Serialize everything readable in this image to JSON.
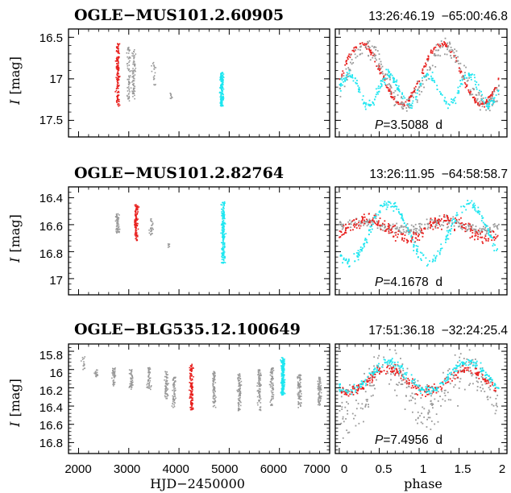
{
  "colors": {
    "red": "#e8201e",
    "gray": "#999999",
    "cyan": "#1ee6f0",
    "frame": "#000000"
  },
  "x_axis": {
    "hjd_label": "HJD−2450000",
    "phase_label": "phase",
    "hjd_ticks": [
      "2000",
      "3000",
      "4000",
      "5000",
      "6000",
      "7000"
    ],
    "phase_ticks": [
      "0",
      "0.5",
      "1",
      "1.5",
      "2"
    ]
  },
  "chart_data": [
    {
      "type": "scatter",
      "name": "OGLE−MUS101.2.60905",
      "coords": "13:26:46.19  −65:00:46.8",
      "ylabel_italic": "I",
      "ylabel_unit": "[mag]",
      "ylim": [
        17.7,
        16.4
      ],
      "yticks": [
        "16.5",
        "17",
        "17.5"
      ],
      "ytick_values": [
        16.5,
        17.0,
        17.5
      ],
      "period_label": "P",
      "period_value": "=3.5088  d",
      "lc_clusters": [
        {
          "x": 2780,
          "ylo": 16.57,
          "yhi": 17.33,
          "color": "red",
          "n": 150
        },
        {
          "x": 3000,
          "ylo": 16.62,
          "yhi": 17.28,
          "color": "gray",
          "n": 60
        },
        {
          "x": 3100,
          "ylo": 16.65,
          "yhi": 17.25,
          "color": "gray",
          "n": 70
        },
        {
          "x": 3500,
          "ylo": 16.72,
          "yhi": 17.15,
          "color": "gray",
          "n": 20
        },
        {
          "x": 3850,
          "ylo": 17.17,
          "yhi": 17.24,
          "color": "gray",
          "n": 8
        },
        {
          "x": 4850,
          "ylo": 16.92,
          "yhi": 17.33,
          "color": "cyan",
          "n": 180
        }
      ],
      "phase_series": [
        {
          "color": "red",
          "mean": 16.94,
          "amp": 0.37,
          "peak": 0.28,
          "shape": 1,
          "scatter": 0.02
        },
        {
          "color": "gray",
          "mean": 16.97,
          "amp": 0.34,
          "peak": 0.33,
          "shape": 1,
          "scatter": 0.06
        },
        {
          "color": "cyan",
          "mean": 17.13,
          "amp": 0.18,
          "peak": 0.62,
          "shape": 2,
          "scatter": 0.03
        }
      ]
    },
    {
      "type": "scatter",
      "name": "OGLE−MUS101.2.82764",
      "coords": "13:26:11.95  −64:58:58.7",
      "ylabel_italic": "I",
      "ylabel_unit": "[mag]",
      "ylim": [
        17.12,
        16.32
      ],
      "yticks": [
        "16.4",
        "16.6",
        "16.8",
        "17"
      ],
      "ytick_values": [
        16.4,
        16.6,
        16.8,
        17.0
      ],
      "period_label": "P",
      "period_value": "=4.1678  d",
      "lc_clusters": [
        {
          "x": 2780,
          "ylo": 16.52,
          "yhi": 16.67,
          "color": "gray",
          "n": 60
        },
        {
          "x": 3150,
          "ylo": 16.45,
          "yhi": 16.72,
          "color": "red",
          "n": 110
        },
        {
          "x": 3450,
          "ylo": 16.55,
          "yhi": 16.68,
          "color": "gray",
          "n": 30
        },
        {
          "x": 3800,
          "ylo": 16.73,
          "yhi": 16.77,
          "color": "gray",
          "n": 6
        },
        {
          "x": 4880,
          "ylo": 16.43,
          "yhi": 16.89,
          "color": "cyan",
          "n": 200
        }
      ],
      "phase_series": [
        {
          "color": "gray",
          "mean": 16.61,
          "amp": 0.03,
          "peak": 0.3,
          "shape": 1,
          "scatter": 0.02
        },
        {
          "color": "red",
          "mean": 16.63,
          "amp": 0.07,
          "peak": 0.35,
          "shape": 1,
          "scatter": 0.025
        },
        {
          "color": "cyan",
          "mean": 16.66,
          "amp": 0.22,
          "peak": 0.62,
          "shape": 1,
          "scatter": 0.02
        }
      ]
    },
    {
      "type": "scatter",
      "name": "OGLE−BLG535.12.100649",
      "coords": "17:51:36.18  −32:24:25.4",
      "ylabel_italic": "I",
      "ylabel_unit": "[mag]",
      "ylim": [
        16.92,
        15.72
      ],
      "yticks": [
        "15.8",
        "16",
        "16.2",
        "16.4",
        "16.6",
        "16.8"
      ],
      "ytick_values": [
        15.8,
        16.0,
        16.2,
        16.4,
        16.6,
        16.8
      ],
      "period_label": "P",
      "period_value": "=7.4956  d",
      "lc_clusters": [
        {
          "x": 2100,
          "ylo": 15.86,
          "yhi": 16.0,
          "color": "gray",
          "n": 15
        },
        {
          "x": 2350,
          "ylo": 16.0,
          "yhi": 16.08,
          "color": "gray",
          "n": 20
        },
        {
          "x": 2700,
          "ylo": 15.98,
          "yhi": 16.18,
          "color": "gray",
          "n": 40
        },
        {
          "x": 3050,
          "ylo": 16.0,
          "yhi": 16.22,
          "color": "gray",
          "n": 50
        },
        {
          "x": 3400,
          "ylo": 15.98,
          "yhi": 16.22,
          "color": "gray",
          "n": 50
        },
        {
          "x": 3750,
          "ylo": 16.02,
          "yhi": 16.32,
          "color": "gray",
          "n": 60
        },
        {
          "x": 3900,
          "ylo": 16.08,
          "yhi": 16.42,
          "color": "gray",
          "n": 60
        },
        {
          "x": 4250,
          "ylo": 15.94,
          "yhi": 16.44,
          "color": "red",
          "n": 110
        },
        {
          "x": 4700,
          "ylo": 16.02,
          "yhi": 16.42,
          "color": "gray",
          "n": 80
        },
        {
          "x": 5200,
          "ylo": 16.04,
          "yhi": 16.45,
          "color": "gray",
          "n": 80
        },
        {
          "x": 5600,
          "ylo": 16.0,
          "yhi": 16.45,
          "color": "gray",
          "n": 80
        },
        {
          "x": 5850,
          "ylo": 15.98,
          "yhi": 16.4,
          "color": "gray",
          "n": 70
        },
        {
          "x": 6070,
          "ylo": 15.87,
          "yhi": 16.28,
          "color": "cyan",
          "n": 200
        },
        {
          "x": 6400,
          "ylo": 16.05,
          "yhi": 16.42,
          "color": "gray",
          "n": 80
        },
        {
          "x": 6800,
          "ylo": 16.08,
          "yhi": 16.4,
          "color": "gray",
          "n": 70
        }
      ],
      "phase_series": [
        {
          "color": "gray",
          "mean": 16.22,
          "amp": 0.25,
          "peak": 0.6,
          "shape": 1,
          "scatter": 0.12
        },
        {
          "color": "red",
          "mean": 16.12,
          "amp": 0.12,
          "peak": 0.6,
          "shape": 1,
          "scatter": 0.03
        },
        {
          "color": "cyan",
          "mean": 16.08,
          "amp": 0.16,
          "peak": 0.62,
          "shape": 1,
          "scatter": 0.025
        }
      ]
    }
  ]
}
